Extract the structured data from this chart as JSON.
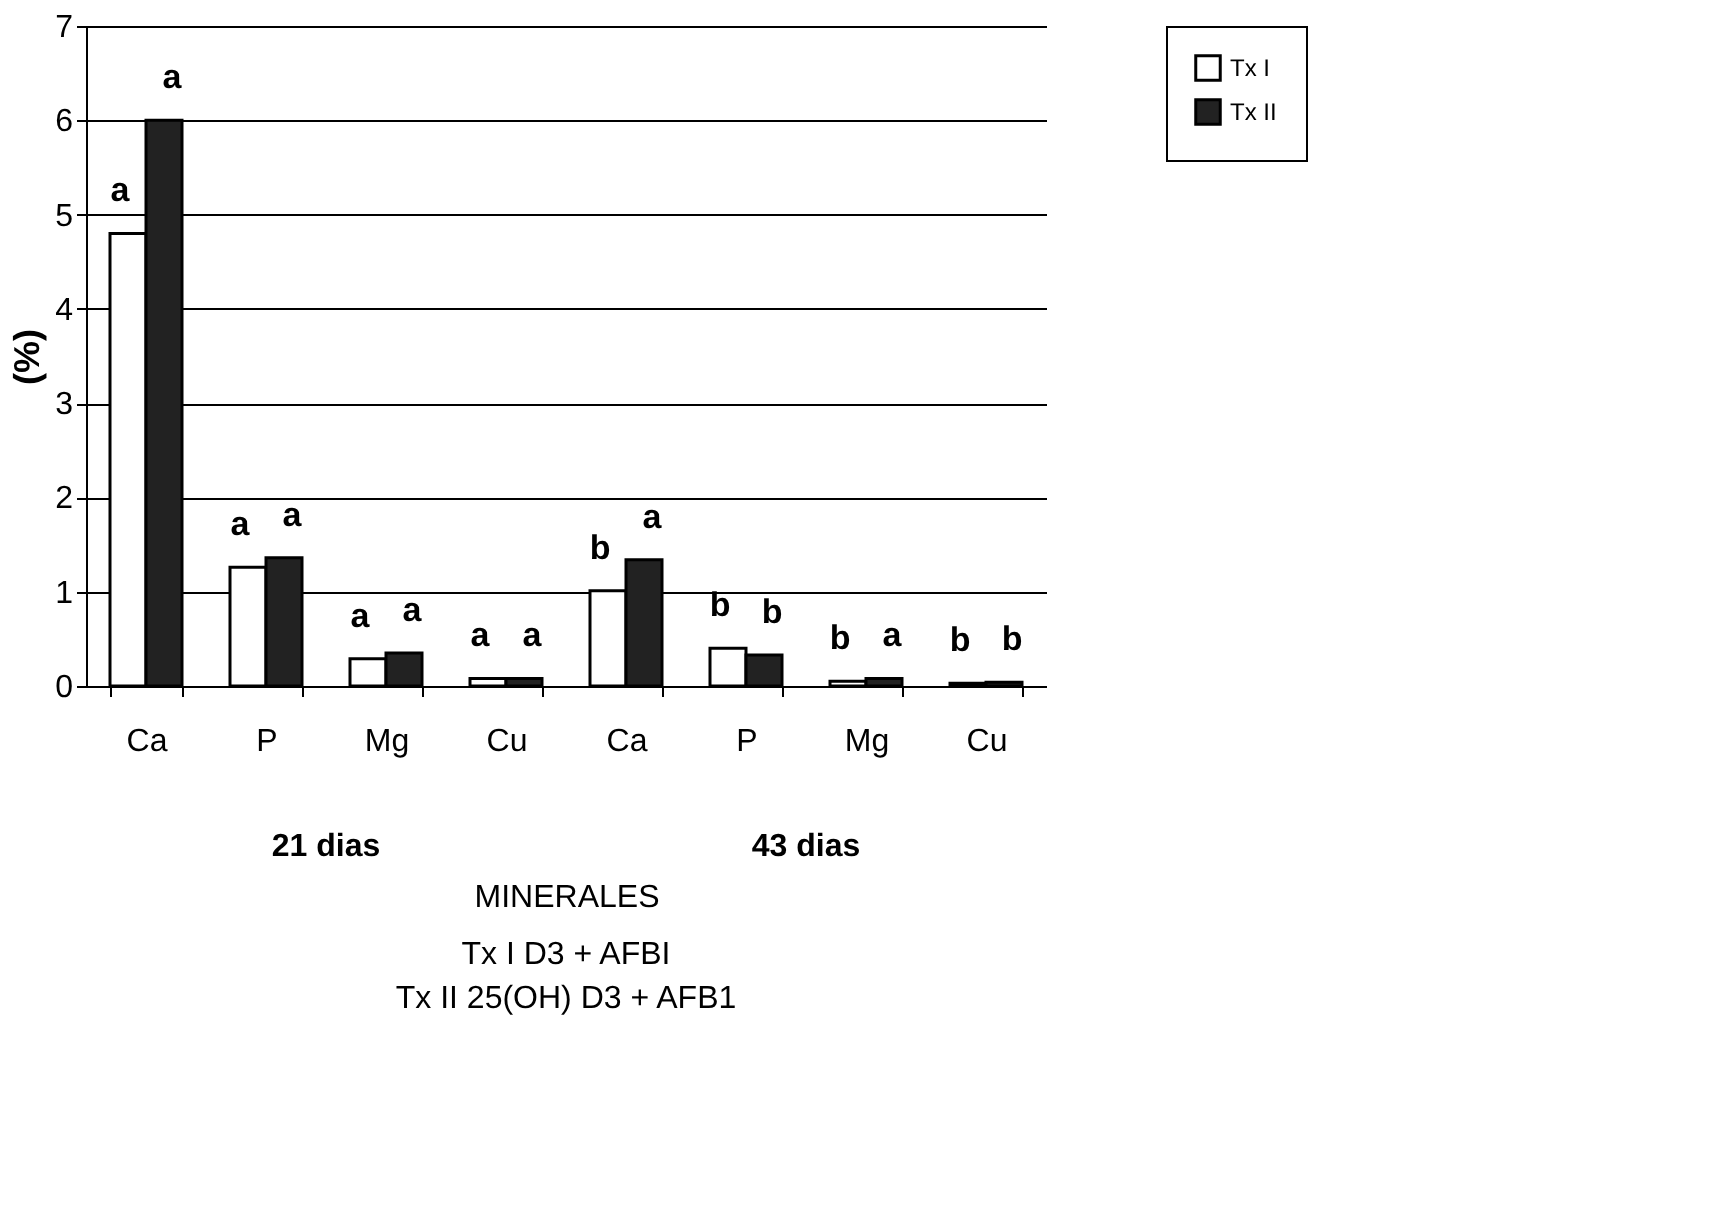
{
  "chart_data": {
    "type": "bar",
    "xlabel": "MINERALES",
    "ylabel": "(%)",
    "categories": [
      "Ca",
      "P",
      "Mg",
      "Cu",
      "Ca",
      "P",
      "Mg",
      "Cu"
    ],
    "series": [
      {
        "name": "Tx I",
        "color": "#ffffff",
        "values": [
          4.8,
          1.26,
          0.29,
          0.08,
          1.01,
          0.4,
          0.05,
          0.03
        ],
        "value_labels": [
          "a",
          "a",
          "a",
          "a",
          "b",
          "b",
          "b",
          "b"
        ]
      },
      {
        "name": "Tx II",
        "color": "#222222",
        "values": [
          6.0,
          1.36,
          0.35,
          0.08,
          1.34,
          0.33,
          0.08,
          0.04
        ],
        "value_labels": [
          "a",
          "a",
          "a",
          "a",
          "a",
          "b",
          "a",
          "b"
        ]
      }
    ],
    "ylim": [
      0,
      7
    ],
    "yticks": [
      0,
      1,
      2,
      3,
      4,
      5,
      6,
      7
    ],
    "grid": "y",
    "legend": "top right",
    "annotations": [
      "21 dias",
      "43 dias",
      "Tx I D3 + AFBI",
      "Tx II 25(OH) D3 + AFB1"
    ]
  }
}
